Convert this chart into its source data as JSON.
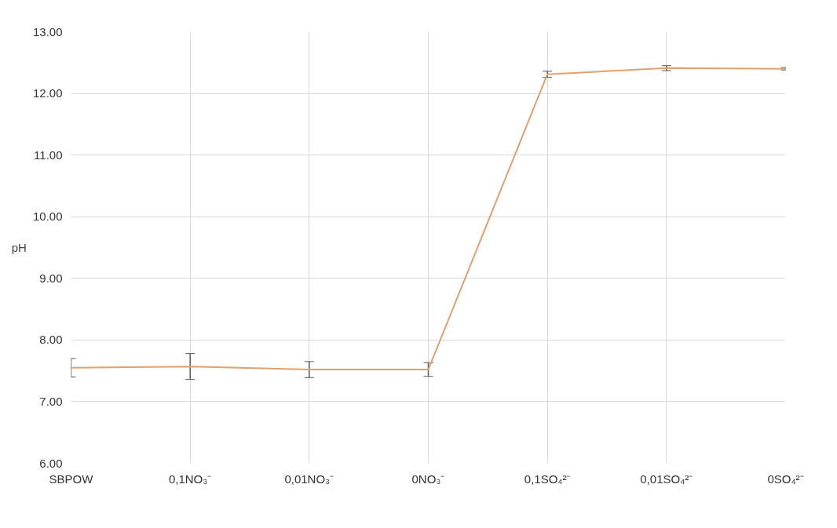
{
  "chart_data": {
    "type": "line",
    "ylabel": "pH",
    "categories": [
      "SBPOW",
      "0,1NO₃⁻",
      "0,01NO₃⁻",
      "0NO₃⁻",
      "0,1SO₄²⁻",
      "0,01SO₄²⁻",
      "0SO₄²⁻"
    ],
    "series": [
      {
        "color": "#e0a070",
        "values": [
          7.55,
          7.57,
          7.52,
          7.52,
          12.31,
          12.41,
          12.4
        ],
        "errors": [
          0.15,
          0.21,
          0.13,
          0.11,
          0.05,
          0.04,
          0.02
        ]
      }
    ],
    "ylim": [
      6,
      13
    ],
    "yticks": [
      {
        "value": 6,
        "label": "6.00"
      },
      {
        "value": 7,
        "label": "7.00"
      },
      {
        "value": 8,
        "label": "8.00"
      },
      {
        "value": 9,
        "label": "9.00"
      },
      {
        "value": 10,
        "label": "10.00"
      },
      {
        "value": 11,
        "label": "11.00"
      },
      {
        "value": 12,
        "label": "12.00"
      },
      {
        "value": 13,
        "label": "13.00"
      }
    ],
    "grid": true,
    "marker": "none",
    "line_style": "solid"
  }
}
